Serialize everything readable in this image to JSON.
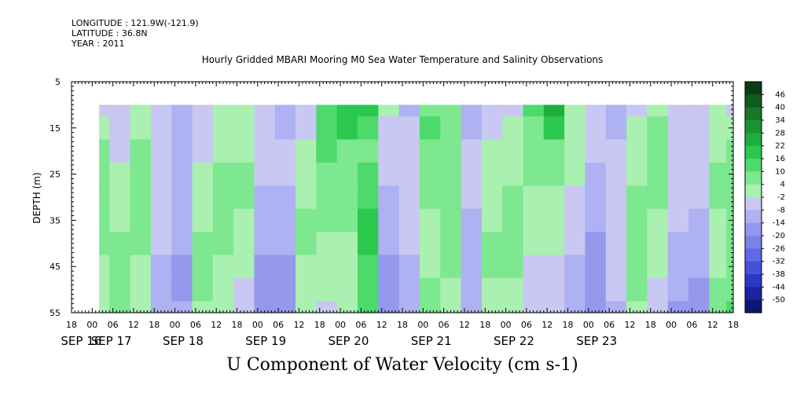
{
  "header": {
    "longitude": "LONGITUDE : 121.9W(-121.9)",
    "latitude": "LATITUDE : 36.8N",
    "year": "YEAR : 2011"
  },
  "chart_data": {
    "type": "heatmap",
    "title": "Hourly Gridded MBARI Mooring M0 Sea Water Temperature and Salinity Observations",
    "xlabel": "U Component of Water Velocity (cm s-1)",
    "ylabel": "DEPTH (m)",
    "ylim": [
      5,
      55
    ],
    "y_inverted": true,
    "y_ticks": [
      5,
      15,
      25,
      35,
      45,
      55
    ],
    "x_hour_ticks": [
      "18",
      "00",
      "06",
      "12",
      "18",
      "00",
      "06",
      "12",
      "18",
      "00",
      "06",
      "12",
      "18",
      "00",
      "06",
      "12",
      "18",
      "00",
      "06",
      "12",
      "18",
      "00",
      "06",
      "12",
      "18",
      "00",
      "06",
      "12",
      "18",
      "00",
      "06",
      "12",
      "18"
    ],
    "x_day_labels": [
      "SEP 16",
      "SEP 17",
      "SEP 18",
      "SEP 19",
      "SEP 20",
      "SEP 21",
      "SEP 22",
      "SEP 23"
    ],
    "x_range_hours": [
      -6,
      186
    ],
    "data_range_hours": [
      2,
      186
    ],
    "data_depth_range": [
      10,
      55
    ],
    "colorbar_levels": [
      "46",
      "40",
      "34",
      "28",
      "22",
      "16",
      "10",
      "4",
      "-2",
      "-8",
      "-14",
      "-20",
      "-26",
      "-32",
      "-38",
      "-44",
      "-50"
    ],
    "colorbar_colors": [
      "#0b3d14",
      "#0f5a1e",
      "#137828",
      "#189232",
      "#1fad3e",
      "#2cc84e",
      "#4dda6b",
      "#7de88f",
      "#aaf0b0",
      "#c8c8f2",
      "#aeb1f2",
      "#9499ee",
      "#7a82ea",
      "#5f6ae4",
      "#4651da",
      "#2c38c4",
      "#1a24a0",
      "#0d1670"
    ],
    "time_samples_hours": [
      2,
      8,
      14,
      20,
      26,
      32,
      38,
      44,
      50,
      56,
      62,
      68,
      74,
      80,
      86,
      92,
      98,
      104,
      110,
      116,
      122,
      128,
      134,
      140,
      146,
      152,
      158,
      164,
      170,
      176,
      182,
      186
    ],
    "depth_levels_m": [
      10,
      15,
      20,
      25,
      30,
      35,
      40,
      45,
      50,
      55
    ],
    "u_values": [
      [
        -4,
        -6,
        -2,
        -8,
        -10,
        -6,
        -2,
        0,
        -6,
        -12,
        -4,
        10,
        20,
        18,
        -2,
        -10,
        8,
        4,
        -14,
        -6,
        -4,
        10,
        24,
        -2,
        -8,
        -14,
        -4,
        2,
        -8,
        -6,
        -2,
        -4
      ],
      [
        2,
        -4,
        0,
        -8,
        -10,
        -6,
        0,
        0,
        -8,
        -10,
        -4,
        12,
        16,
        12,
        -4,
        -8,
        10,
        4,
        -10,
        -4,
        -2,
        8,
        16,
        0,
        -8,
        -10,
        -2,
        4,
        -6,
        -6,
        0,
        -2
      ],
      [
        6,
        -4,
        4,
        -6,
        -10,
        -4,
        2,
        2,
        -8,
        -8,
        -2,
        10,
        8,
        8,
        -6,
        -6,
        8,
        4,
        -8,
        -2,
        0,
        6,
        8,
        -2,
        -8,
        -8,
        0,
        6,
        -4,
        -4,
        2,
        4
      ],
      [
        8,
        -2,
        6,
        -4,
        -10,
        -2,
        4,
        4,
        -8,
        -8,
        0,
        8,
        6,
        10,
        -8,
        -4,
        6,
        6,
        -8,
        0,
        2,
        4,
        4,
        -2,
        -10,
        -6,
        2,
        6,
        -4,
        -6,
        4,
        6
      ],
      [
        6,
        0,
        6,
        -4,
        -10,
        0,
        6,
        4,
        -10,
        -10,
        2,
        6,
        6,
        14,
        -10,
        -4,
        4,
        8,
        -8,
        0,
        4,
        2,
        2,
        -4,
        -12,
        -4,
        4,
        4,
        -6,
        -8,
        4,
        6
      ],
      [
        4,
        2,
        6,
        -6,
        -12,
        2,
        6,
        2,
        -12,
        -12,
        4,
        4,
        4,
        16,
        -12,
        -6,
        2,
        8,
        -10,
        2,
        6,
        0,
        0,
        -6,
        -14,
        -4,
        6,
        2,
        -8,
        -10,
        2,
        4
      ],
      [
        4,
        4,
        4,
        -8,
        -14,
        4,
        4,
        0,
        -14,
        -14,
        4,
        2,
        2,
        16,
        -14,
        -8,
        2,
        6,
        -12,
        4,
        6,
        -2,
        -2,
        -8,
        -16,
        -4,
        6,
        0,
        -10,
        -12,
        0,
        4
      ],
      [
        2,
        6,
        2,
        -10,
        -16,
        4,
        2,
        -2,
        -16,
        -16,
        2,
        0,
        0,
        14,
        -16,
        -10,
        2,
        4,
        -14,
        4,
        4,
        -4,
        -4,
        -10,
        -18,
        -6,
        6,
        -2,
        -12,
        -14,
        2,
        6
      ],
      [
        0,
        8,
        0,
        -12,
        -16,
        4,
        0,
        -4,
        -18,
        -18,
        0,
        -2,
        -2,
        12,
        -18,
        -12,
        4,
        2,
        -14,
        2,
        2,
        -6,
        -6,
        -12,
        -20,
        -8,
        4,
        -4,
        -14,
        -16,
        4,
        8
      ],
      [
        -2,
        8,
        -2,
        -12,
        -14,
        2,
        -2,
        -4,
        -20,
        -18,
        -2,
        -4,
        -2,
        10,
        -20,
        -14,
        6,
        0,
        -12,
        0,
        0,
        -8,
        -8,
        -14,
        -20,
        -10,
        2,
        -6,
        -16,
        -16,
        6,
        10
      ]
    ]
  }
}
